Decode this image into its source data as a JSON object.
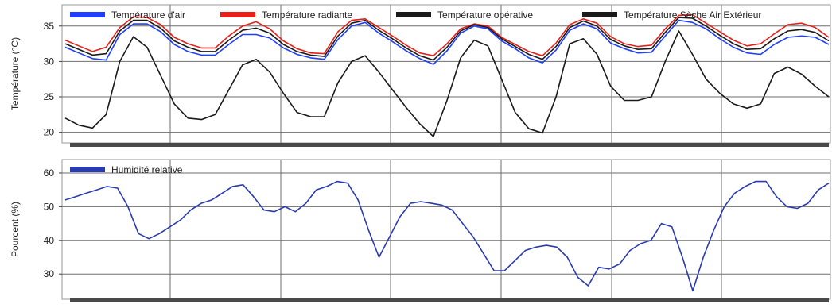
{
  "chart_data": [
    {
      "type": "line",
      "ylabel": "Température (°C)",
      "ylim": [
        18.5,
        38
      ],
      "yticks": [
        20,
        25,
        30,
        35
      ],
      "grid": true,
      "legend_position": "top",
      "series": [
        {
          "name": "Température d'air",
          "color": "#1f3fff",
          "values": [
            32.0,
            31.2,
            30.4,
            30.2,
            33.8,
            35.3,
            35.3,
            34.2,
            32.4,
            31.4,
            30.9,
            30.9,
            32.4,
            33.8,
            33.8,
            33.3,
            31.9,
            31.0,
            30.5,
            30.3,
            33.1,
            35.0,
            35.5,
            34.0,
            32.8,
            31.5,
            30.4,
            29.6,
            31.5,
            34.0,
            35.0,
            34.6,
            32.9,
            31.8,
            30.5,
            29.8,
            31.6,
            34.4,
            35.3,
            34.6,
            32.6,
            31.8,
            31.2,
            31.3,
            33.6,
            35.8,
            35.5,
            34.6,
            33.2,
            32.0,
            31.2,
            31.0,
            32.4,
            33.4,
            33.6,
            33.4,
            32.4
          ]
        },
        {
          "name": "Température radiante",
          "color": "#e8201a",
          "values": [
            33.0,
            32.2,
            31.4,
            32.0,
            34.8,
            36.3,
            36.2,
            35.2,
            33.4,
            32.5,
            31.9,
            31.9,
            33.6,
            35.0,
            35.6,
            34.6,
            32.9,
            31.8,
            31.2,
            31.1,
            34.2,
            35.8,
            36.0,
            34.8,
            33.6,
            32.3,
            31.2,
            30.8,
            32.5,
            34.6,
            35.3,
            35.0,
            33.4,
            32.4,
            31.4,
            30.8,
            32.6,
            35.2,
            36.0,
            35.4,
            33.5,
            32.5,
            32.1,
            32.3,
            34.6,
            36.5,
            36.6,
            35.4,
            34.2,
            33.0,
            32.2,
            32.5,
            33.9,
            35.2,
            35.4,
            34.8,
            33.4
          ]
        },
        {
          "name": "Température opérative",
          "color": "#1a1a1a",
          "values": [
            32.5,
            31.7,
            30.9,
            31.1,
            34.3,
            35.8,
            35.8,
            34.7,
            32.9,
            32.0,
            31.4,
            31.4,
            33.0,
            34.4,
            34.7,
            34.0,
            32.4,
            31.4,
            30.9,
            30.7,
            33.6,
            35.4,
            35.8,
            34.4,
            33.2,
            31.9,
            30.8,
            30.2,
            32.0,
            34.3,
            35.2,
            34.8,
            33.2,
            32.1,
            31.0,
            30.3,
            32.1,
            34.8,
            35.7,
            35.0,
            33.1,
            32.2,
            31.7,
            31.8,
            34.1,
            36.2,
            36.1,
            35.0,
            33.7,
            32.5,
            31.7,
            31.8,
            33.2,
            34.3,
            34.5,
            34.1,
            32.9
          ]
        },
        {
          "name": "Température Sèche Air Extérieur",
          "color": "#1a1a1a",
          "values": [
            22.0,
            21.0,
            20.6,
            22.5,
            30.0,
            33.5,
            32.0,
            28.0,
            24.0,
            22.0,
            21.8,
            22.5,
            26.0,
            29.5,
            30.3,
            28.5,
            25.5,
            22.8,
            22.2,
            22.2,
            27.0,
            30.0,
            30.8,
            28.5,
            26.0,
            23.5,
            21.2,
            19.4,
            24.5,
            30.5,
            33.0,
            32.2,
            27.5,
            22.8,
            20.5,
            19.9,
            25.0,
            32.5,
            33.2,
            31.0,
            26.5,
            24.5,
            24.5,
            25.0,
            30.0,
            34.3,
            31.0,
            27.5,
            25.5,
            24.0,
            23.4,
            24.0,
            28.3,
            29.2,
            28.2,
            26.5,
            25.0
          ]
        }
      ]
    },
    {
      "type": "line",
      "ylabel": "Pourcent (%)",
      "ylim": [
        22.5,
        64
      ],
      "yticks": [
        30,
        40,
        50,
        60
      ],
      "grid": true,
      "legend_position": "top-left",
      "series": [
        {
          "name": "Humidité relative",
          "color": "#2a3bb0",
          "values": [
            52,
            53,
            54,
            55,
            56,
            55.5,
            50,
            42,
            40.5,
            42,
            44,
            46,
            49,
            51,
            52,
            54,
            56,
            56.5,
            53,
            49,
            48.5,
            50,
            48.5,
            51,
            55,
            56,
            57.5,
            57,
            52,
            43,
            35,
            41,
            47,
            51,
            51.5,
            51,
            50.5,
            49,
            45,
            41,
            36,
            31,
            31,
            34,
            37,
            38,
            38.5,
            38,
            35,
            29,
            26.5,
            32,
            31.5,
            33,
            37,
            39,
            40,
            45,
            44,
            35,
            25,
            35,
            43,
            50,
            54,
            56,
            57.5,
            57.5,
            53,
            50,
            49.5,
            51,
            55,
            57
          ]
        }
      ]
    }
  ]
}
